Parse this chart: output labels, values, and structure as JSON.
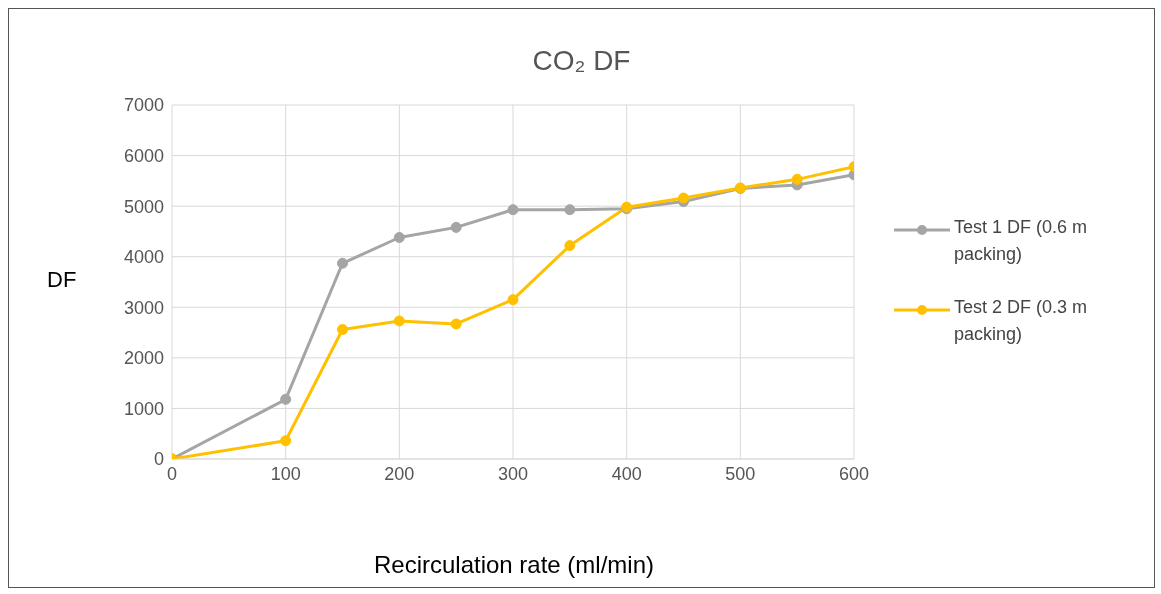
{
  "chart_data": {
    "type": "line",
    "title": "CO₂ DF",
    "xlabel": "Recirculation rate (ml/min)",
    "ylabel": "DF",
    "x": [
      0,
      100,
      150,
      200,
      250,
      300,
      350,
      400,
      450,
      500,
      550,
      600
    ],
    "series": [
      {
        "name": "Test 1 DF (0.6 m packing)",
        "color": "#a5a5a5",
        "values": [
          0,
          1180,
          3870,
          4380,
          4580,
          4930,
          4930,
          4950,
          5090,
          5350,
          5420,
          5620
        ]
      },
      {
        "name": "Test 2 DF (0.3 m packing)",
        "color": "#ffc000",
        "values": [
          0,
          360,
          2560,
          2730,
          2670,
          3150,
          4220,
          4980,
          5160,
          5360,
          5530,
          5780
        ]
      }
    ],
    "xlim": [
      0,
      600
    ],
    "xticks": [
      0,
      100,
      200,
      300,
      400,
      500,
      600
    ],
    "ylim": [
      0,
      7000
    ],
    "yticks": [
      0,
      1000,
      2000,
      3000,
      4000,
      5000,
      6000,
      7000
    ],
    "grid": true,
    "legend": "right",
    "marker": "circle",
    "line_style": "solid"
  }
}
